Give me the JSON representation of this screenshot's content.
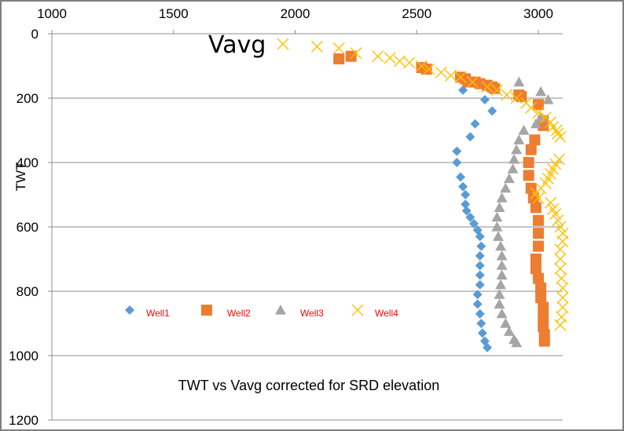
{
  "chart_data": {
    "type": "scatter",
    "title": "TWT vs Vavg  corrected for SRD elevation",
    "annotation": "Vavg",
    "ylabel": "TWT",
    "xlabel": "",
    "xlim": [
      1000,
      3100
    ],
    "ylim": [
      0,
      1200
    ],
    "y_inverted": true,
    "x_axis_position": "top",
    "x_ticks": [
      1000,
      1500,
      2000,
      2500,
      3000
    ],
    "y_ticks": [
      0,
      200,
      400,
      600,
      800,
      1000,
      1200
    ],
    "grid": "horizontal",
    "legend_position": "left-middle",
    "legend_text_color": "#ff0000",
    "series": [
      {
        "name": "Well1",
        "marker": "diamond",
        "color": "#5b9bd5",
        "points": [
          [
            2690,
            175
          ],
          [
            2780,
            205
          ],
          [
            2810,
            240
          ],
          [
            2740,
            280
          ],
          [
            2720,
            320
          ],
          [
            2665,
            365
          ],
          [
            2665,
            400
          ],
          [
            2680,
            445
          ],
          [
            2690,
            475
          ],
          [
            2700,
            500
          ],
          [
            2700,
            530
          ],
          [
            2705,
            550
          ],
          [
            2720,
            570
          ],
          [
            2735,
            590
          ],
          [
            2750,
            610
          ],
          [
            2760,
            630
          ],
          [
            2765,
            660
          ],
          [
            2760,
            690
          ],
          [
            2760,
            720
          ],
          [
            2760,
            750
          ],
          [
            2760,
            780
          ],
          [
            2750,
            810
          ],
          [
            2750,
            840
          ],
          [
            2760,
            870
          ],
          [
            2765,
            900
          ],
          [
            2770,
            930
          ],
          [
            2780,
            955
          ],
          [
            2790,
            975
          ]
        ]
      },
      {
        "name": "Well2",
        "marker": "square",
        "color": "#ed7d31",
        "points": [
          [
            2180,
            78
          ],
          [
            2230,
            70
          ],
          [
            2520,
            105
          ],
          [
            2540,
            110
          ],
          [
            2680,
            135
          ],
          [
            2700,
            140
          ],
          [
            2710,
            150
          ],
          [
            2740,
            150
          ],
          [
            2760,
            155
          ],
          [
            2790,
            160
          ],
          [
            2810,
            165
          ],
          [
            2820,
            170
          ],
          [
            2920,
            190
          ],
          [
            2930,
            195
          ],
          [
            3000,
            220
          ],
          [
            3020,
            270
          ],
          [
            3020,
            285
          ],
          [
            2985,
            330
          ],
          [
            2970,
            360
          ],
          [
            2960,
            400
          ],
          [
            2960,
            440
          ],
          [
            2970,
            480
          ],
          [
            2980,
            510
          ],
          [
            2990,
            540
          ],
          [
            3000,
            580
          ],
          [
            3000,
            620
          ],
          [
            3000,
            660
          ],
          [
            2990,
            700
          ],
          [
            2990,
            730
          ],
          [
            3000,
            760
          ],
          [
            3010,
            790
          ],
          [
            3010,
            820
          ],
          [
            3020,
            850
          ],
          [
            3020,
            880
          ],
          [
            3020,
            910
          ],
          [
            3025,
            935
          ],
          [
            3025,
            955
          ]
        ]
      },
      {
        "name": "Well3",
        "marker": "triangle",
        "color": "#a5a5a5",
        "points": [
          [
            2920,
            150
          ],
          [
            3010,
            180
          ],
          [
            3040,
            205
          ],
          [
            3010,
            260
          ],
          [
            2990,
            280
          ],
          [
            2940,
            300
          ],
          [
            2920,
            330
          ],
          [
            2910,
            360
          ],
          [
            2900,
            390
          ],
          [
            2895,
            420
          ],
          [
            2880,
            450
          ],
          [
            2865,
            480
          ],
          [
            2850,
            510
          ],
          [
            2840,
            540
          ],
          [
            2830,
            570
          ],
          [
            2830,
            600
          ],
          [
            2835,
            630
          ],
          [
            2845,
            660
          ],
          [
            2850,
            690
          ],
          [
            2850,
            720
          ],
          [
            2850,
            750
          ],
          [
            2845,
            780
          ],
          [
            2840,
            810
          ],
          [
            2840,
            840
          ],
          [
            2850,
            870
          ],
          [
            2865,
            900
          ],
          [
            2880,
            925
          ],
          [
            2900,
            950
          ],
          [
            2910,
            960
          ]
        ]
      },
      {
        "name": "Well4",
        "marker": "x",
        "color": "#ffc000",
        "points": [
          [
            1950,
            32
          ],
          [
            2090,
            40
          ],
          [
            2180,
            45
          ],
          [
            2250,
            60
          ],
          [
            2340,
            70
          ],
          [
            2390,
            75
          ],
          [
            2430,
            85
          ],
          [
            2470,
            90
          ],
          [
            2520,
            100
          ],
          [
            2550,
            110
          ],
          [
            2600,
            120
          ],
          [
            2640,
            130
          ],
          [
            2680,
            135
          ],
          [
            2730,
            150
          ],
          [
            2790,
            165
          ],
          [
            2830,
            175
          ],
          [
            2870,
            190
          ],
          [
            2910,
            200
          ],
          [
            2950,
            215
          ],
          [
            2970,
            230
          ],
          [
            3000,
            245
          ],
          [
            3030,
            260
          ],
          [
            3050,
            275
          ],
          [
            3060,
            290
          ],
          [
            3075,
            300
          ],
          [
            3080,
            310
          ],
          [
            3090,
            320
          ],
          [
            3085,
            390
          ],
          [
            3070,
            405
          ],
          [
            3060,
            420
          ],
          [
            3050,
            435
          ],
          [
            3040,
            450
          ],
          [
            3030,
            465
          ],
          [
            3010,
            480
          ],
          [
            2990,
            495
          ],
          [
            3000,
            510
          ],
          [
            3050,
            525
          ],
          [
            3060,
            545
          ],
          [
            3070,
            560
          ],
          [
            3080,
            580
          ],
          [
            3090,
            600
          ],
          [
            3100,
            620
          ],
          [
            3100,
            645
          ],
          [
            3090,
            670
          ],
          [
            3090,
            700
          ],
          [
            3090,
            730
          ],
          [
            3095,
            760
          ],
          [
            3100,
            790
          ],
          [
            3100,
            820
          ],
          [
            3100,
            850
          ],
          [
            3095,
            880
          ],
          [
            3090,
            905
          ]
        ]
      }
    ]
  }
}
